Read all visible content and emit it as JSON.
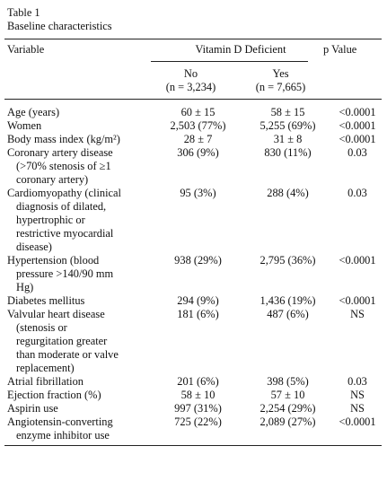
{
  "table": {
    "label": "Table 1",
    "caption": "Baseline characteristics",
    "header": {
      "variable": "Variable",
      "group": "Vitamin D Deficient",
      "p_value": "p Value",
      "col_no": "No",
      "col_no_n": "(n = 3,234)",
      "col_yes": "Yes",
      "col_yes_n": "(n = 7,665)"
    },
    "rows": [
      {
        "lines": [
          "Age (years)"
        ],
        "no": "60 ± 15",
        "yes": "58 ± 15",
        "p": "<0.0001"
      },
      {
        "lines": [
          "Women"
        ],
        "no": "2,503 (77%)",
        "yes": "5,255 (69%)",
        "p": "<0.0001"
      },
      {
        "lines": [
          "Body mass index (kg/m²)"
        ],
        "no": "28 ± 7",
        "yes": "31 ± 8",
        "p": "<0.0001"
      },
      {
        "lines": [
          "Coronary artery disease",
          "(>70% stenosis of ≥1",
          "coronary artery)"
        ],
        "no": "306 (9%)",
        "yes": "830 (11%)",
        "p": "0.03"
      },
      {
        "lines": [
          "Cardiomyopathy (clinical",
          "diagnosis of dilated,",
          "hypertrophic or",
          "restrictive myocardial",
          "disease)"
        ],
        "no": "95 (3%)",
        "yes": "288 (4%)",
        "p": "0.03"
      },
      {
        "lines": [
          "Hypertension (blood",
          "pressure >140/90 mm",
          "Hg)"
        ],
        "no": "938 (29%)",
        "yes": "2,795 (36%)",
        "p": "<0.0001"
      },
      {
        "lines": [
          "Diabetes mellitus"
        ],
        "no": "294 (9%)",
        "yes": "1,436 (19%)",
        "p": "<0.0001"
      },
      {
        "lines": [
          "Valvular heart disease",
          "(stenosis or",
          "regurgitation greater",
          "than moderate or valve",
          "replacement)"
        ],
        "no": "181 (6%)",
        "yes": "487 (6%)",
        "p": "NS"
      },
      {
        "lines": [
          "Atrial fibrillation"
        ],
        "no": "201 (6%)",
        "yes": "398 (5%)",
        "p": "0.03"
      },
      {
        "lines": [
          "Ejection fraction (%)"
        ],
        "no": "58 ± 10",
        "yes": "57 ± 10",
        "p": "NS"
      },
      {
        "lines": [
          "Aspirin use"
        ],
        "no": "997 (31%)",
        "yes": "2,254 (29%)",
        "p": "NS"
      },
      {
        "lines": [
          "Angiotensin-converting",
          "enzyme inhibitor use"
        ],
        "no": "725 (22%)",
        "yes": "2,089 (27%)",
        "p": "<0.0001"
      }
    ]
  }
}
